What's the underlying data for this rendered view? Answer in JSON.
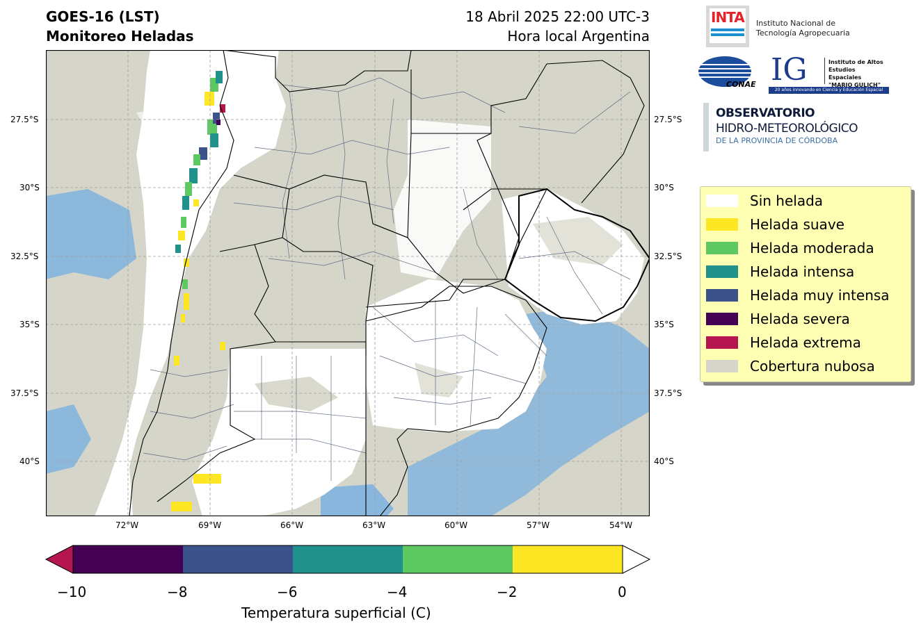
{
  "header": {
    "title_line1": "GOES-16 (LST)",
    "title_line2": "Monitoreo Heladas",
    "date_line1": "18 Abril 2025 22:00 UTC-3",
    "date_line2": "Hora local Argentina"
  },
  "map": {
    "lat_ticks": [
      "27.5°S",
      "30°S",
      "32.5°S",
      "35°S",
      "37.5°S",
      "40°S"
    ],
    "lon_ticks": [
      "72°W",
      "69°W",
      "66°W",
      "63°W",
      "60°W",
      "57°W",
      "54°W"
    ],
    "colors": {
      "cloud": "#d6d5c9",
      "land": "#ffffff",
      "sea": "#7fb3de",
      "border": "#000000",
      "dept": "#5f6e85",
      "grid": "#9e9e9e"
    }
  },
  "legend": {
    "items": [
      {
        "label": "Sin helada",
        "color": "#ffffff"
      },
      {
        "label": "Helada suave",
        "color": "#fde725"
      },
      {
        "label": "Helada moderada",
        "color": "#5ec962"
      },
      {
        "label": "Helada intensa",
        "color": "#21918c"
      },
      {
        "label": "Helada muy intensa",
        "color": "#3b528b"
      },
      {
        "label": "Helada severa",
        "color": "#440154"
      },
      {
        "label": "Helada extrema",
        "color": "#b5164f"
      },
      {
        "label": "Cobertura nubosa",
        "color": "#d6d5c9"
      }
    ]
  },
  "colorbar": {
    "ticks": [
      "−10",
      "−8",
      "−6",
      "−4",
      "−2",
      "0"
    ],
    "label": "Temperatura superficial (C)",
    "segments": [
      "#440154",
      "#3b528b",
      "#21918c",
      "#5ec962",
      "#fde725"
    ],
    "under_color": "#b5164f",
    "over_color": "#ffffff"
  },
  "logos": {
    "inta_mark": "INTA",
    "inta_line1": "Instituto Nacional de",
    "inta_line2": "Tecnología Agropecuaria",
    "conae_mark": "CONAE",
    "ig_mark": "IG",
    "ig_line1": "Instituto de Altos",
    "ig_line2": "Estudios Espaciales",
    "ig_line3": "\"MARIO GULICH\"",
    "ig_strip": "20 años innovando en Ciencia y Educación Espacial",
    "obs_line1": "OBSERVATORIO",
    "obs_line2": "HIDRO-METEOROLÓGICO",
    "obs_line3": "DE LA PROVINCIA DE CÓRDOBA"
  }
}
